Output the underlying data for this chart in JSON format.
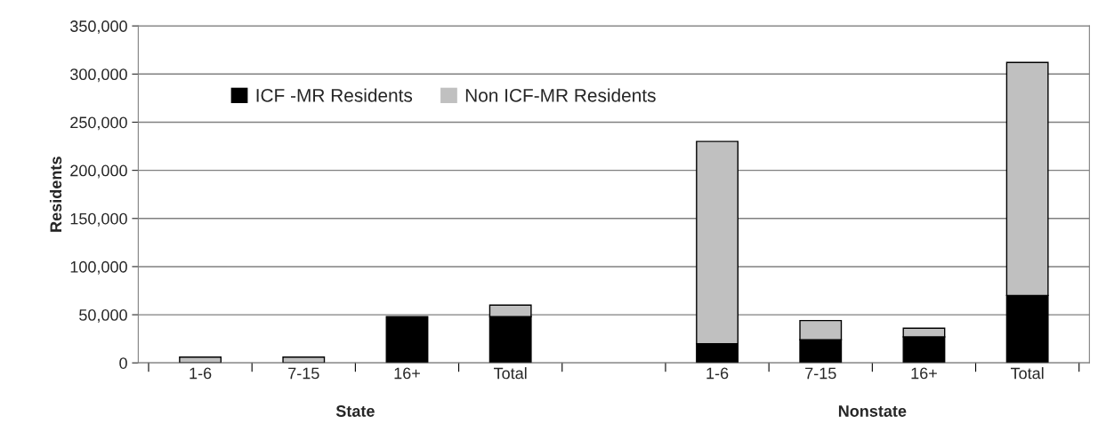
{
  "chart_data": {
    "type": "bar",
    "stacked": true,
    "ylabel": "Residents",
    "categories": [
      "1-6",
      "7-15",
      "16+",
      "Total",
      null,
      "1-6",
      "7-15",
      "16+",
      "Total"
    ],
    "series": [
      {
        "name": "ICF -MR Residents",
        "color": "#000000",
        "values": [
          0,
          0,
          48000,
          48000,
          null,
          20000,
          24000,
          27000,
          70000
        ]
      },
      {
        "name": "Non ICF-MR Residents",
        "color": "#c0c0c0",
        "values": [
          6000,
          6000,
          0,
          12000,
          null,
          210000,
          20000,
          9000,
          242000
        ]
      }
    ],
    "ylim": [
      0,
      350000
    ],
    "yticks": [
      0,
      {
        "value": 50000,
        "label": "50,000"
      },
      {
        "value": 100000,
        "label": "100,000"
      },
      {
        "value": 150000,
        "label": "150,000"
      },
      {
        "value": 200000,
        "label": "200,000"
      },
      {
        "value": 250000,
        "label": "250,000"
      },
      {
        "value": 300000,
        "label": "300,000"
      },
      {
        "value": 350000,
        "label": "350,000"
      }
    ],
    "grid": "y",
    "legend": "top left",
    "annotations": [
      "State",
      "Nonstate"
    ]
  }
}
